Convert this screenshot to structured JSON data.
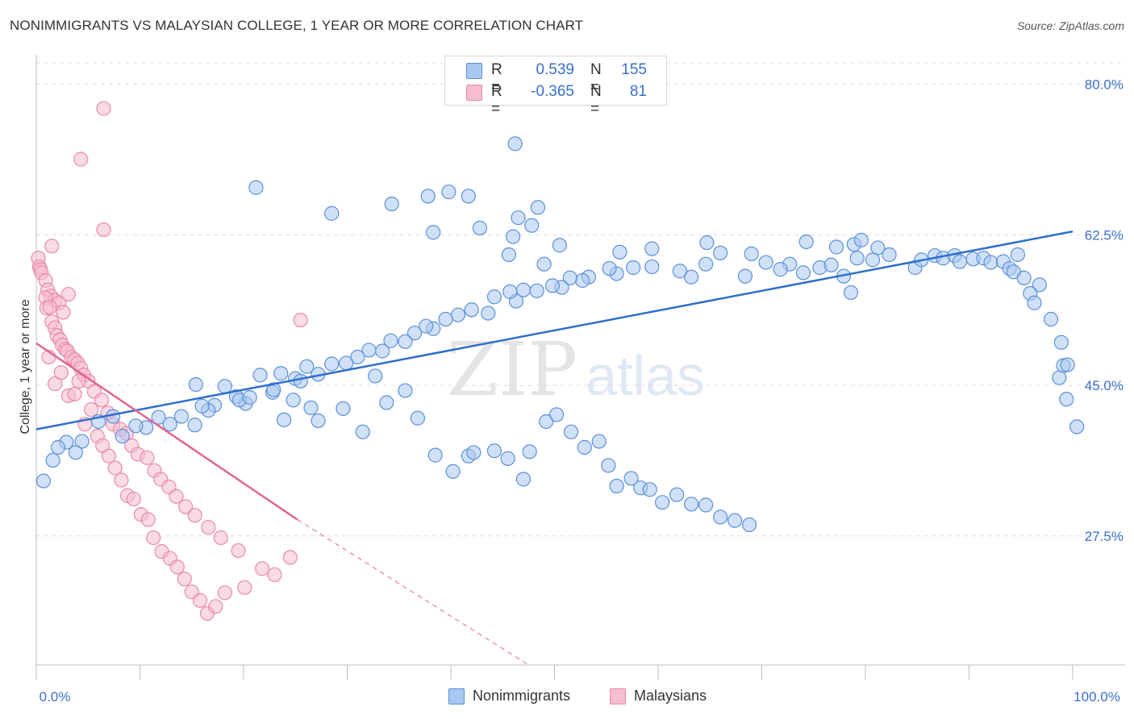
{
  "header": {
    "title": "NONIMMIGRANTS VS MALAYSIAN COLLEGE, 1 YEAR OR MORE CORRELATION CHART",
    "source": "Source: ZipAtlas.com"
  },
  "colors": {
    "blue_fill": "#a9c8f0",
    "blue_stroke": "#5b8fd8",
    "blue_line": "#2d6fcc",
    "pink_fill": "#f6bcd0",
    "pink_stroke": "#e889a8",
    "pink_line": "#e0658f",
    "grid": "#dddddd",
    "axis_text": "#3a6fc9"
  },
  "legend": {
    "rows": [
      {
        "r_label": "R =",
        "r_value": "0.539",
        "n_label": "N =",
        "n_value": "155"
      },
      {
        "r_label": "R =",
        "r_value": "-0.365",
        "n_label": "N =",
        "n_value": "81"
      }
    ],
    "bottom": [
      "Nonimmigrants",
      "Malaysians"
    ]
  },
  "watermark": {
    "zip": "ZIP",
    "atlas": "atlas"
  },
  "chart_data": {
    "type": "scatter",
    "title": "NONIMMIGRANTS VS MALAYSIAN COLLEGE, 1 YEAR OR MORE CORRELATION CHART",
    "xlabel": "",
    "ylabel": "College, 1 year or more",
    "xlim": [
      0,
      100
    ],
    "ylim": [
      12.5,
      82.5
    ],
    "x_tick_labels": [
      "0.0%",
      "100.0%"
    ],
    "y_ticks": [
      27.5,
      45.0,
      62.5,
      80.0
    ],
    "y_tick_labels": [
      "27.5%",
      "45.0%",
      "62.5%",
      "80.0%"
    ],
    "grid": true,
    "legend_position": "top-center",
    "series": [
      {
        "name": "Nonimmigrants",
        "r": 0.539,
        "n": 155,
        "trend": {
          "x": [
            0,
            100
          ],
          "y": [
            39.9,
            62.9
          ]
        },
        "points": [
          [
            46.2,
            73.1
          ],
          [
            21.2,
            68.0
          ],
          [
            37.8,
            67.0
          ],
          [
            34.3,
            66.1
          ],
          [
            39.8,
            67.5
          ],
          [
            41.7,
            67.0
          ],
          [
            46.5,
            64.5
          ],
          [
            48.4,
            65.7
          ],
          [
            42.8,
            63.3
          ],
          [
            47.8,
            63.6
          ],
          [
            28.5,
            65.0
          ],
          [
            38.3,
            62.8
          ],
          [
            46.0,
            62.3
          ],
          [
            45.6,
            60.2
          ],
          [
            50.5,
            61.3
          ],
          [
            49.0,
            59.1
          ],
          [
            59.4,
            60.9
          ],
          [
            56.3,
            60.5
          ],
          [
            74.3,
            61.7
          ],
          [
            78.9,
            61.4
          ],
          [
            77.2,
            61.1
          ],
          [
            79.6,
            61.9
          ],
          [
            81.2,
            61.0
          ],
          [
            79.2,
            59.8
          ],
          [
            80.7,
            59.6
          ],
          [
            82.3,
            60.2
          ],
          [
            84.8,
            58.7
          ],
          [
            85.4,
            59.6
          ],
          [
            86.7,
            60.1
          ],
          [
            87.5,
            59.8
          ],
          [
            88.6,
            60.1
          ],
          [
            89.1,
            59.4
          ],
          [
            90.4,
            59.7
          ],
          [
            91.4,
            59.8
          ],
          [
            92.1,
            59.3
          ],
          [
            93.3,
            59.4
          ],
          [
            93.9,
            58.6
          ],
          [
            94.7,
            60.2
          ],
          [
            94.3,
            58.2
          ],
          [
            95.3,
            57.5
          ],
          [
            96.8,
            56.7
          ],
          [
            95.9,
            55.7
          ],
          [
            96.3,
            54.6
          ],
          [
            97.9,
            52.7
          ],
          [
            98.9,
            50.0
          ],
          [
            99.1,
            47.3
          ],
          [
            99.5,
            47.4
          ],
          [
            98.7,
            45.9
          ],
          [
            99.4,
            43.4
          ],
          [
            100.4,
            40.2
          ],
          [
            72.7,
            59.1
          ],
          [
            74.0,
            58.1
          ],
          [
            75.6,
            58.7
          ],
          [
            76.7,
            59.0
          ],
          [
            77.9,
            57.7
          ],
          [
            78.6,
            55.8
          ],
          [
            71.8,
            58.5
          ],
          [
            70.4,
            59.3
          ],
          [
            69.0,
            60.3
          ],
          [
            68.4,
            57.7
          ],
          [
            66.0,
            60.4
          ],
          [
            64.7,
            61.6
          ],
          [
            64.6,
            59.1
          ],
          [
            63.2,
            57.6
          ],
          [
            62.1,
            58.3
          ],
          [
            59.4,
            58.8
          ],
          [
            57.6,
            58.7
          ],
          [
            56.0,
            58.0
          ],
          [
            55.3,
            58.6
          ],
          [
            53.3,
            57.6
          ],
          [
            52.7,
            57.2
          ],
          [
            51.5,
            57.5
          ],
          [
            50.7,
            56.4
          ],
          [
            49.8,
            56.6
          ],
          [
            48.3,
            56.0
          ],
          [
            47.0,
            56.1
          ],
          [
            46.3,
            54.8
          ],
          [
            45.7,
            55.9
          ],
          [
            44.2,
            55.3
          ],
          [
            43.6,
            53.4
          ],
          [
            42.0,
            53.8
          ],
          [
            40.7,
            53.2
          ],
          [
            39.5,
            52.7
          ],
          [
            38.3,
            51.6
          ],
          [
            37.6,
            51.9
          ],
          [
            36.5,
            51.1
          ],
          [
            35.6,
            50.1
          ],
          [
            34.2,
            50.2
          ],
          [
            33.4,
            49.0
          ],
          [
            32.1,
            49.1
          ],
          [
            31.0,
            48.3
          ],
          [
            29.9,
            47.6
          ],
          [
            28.5,
            47.5
          ],
          [
            27.2,
            46.3
          ],
          [
            26.1,
            47.2
          ],
          [
            25.0,
            45.8
          ],
          [
            23.6,
            46.4
          ],
          [
            22.8,
            44.2
          ],
          [
            21.6,
            46.2
          ],
          [
            20.2,
            42.9
          ],
          [
            19.3,
            43.7
          ],
          [
            18.2,
            44.9
          ],
          [
            17.2,
            42.7
          ],
          [
            16.6,
            42.1
          ],
          [
            16.0,
            42.6
          ],
          [
            15.3,
            40.4
          ],
          [
            14.0,
            41.4
          ],
          [
            12.9,
            40.5
          ],
          [
            11.8,
            41.3
          ],
          [
            10.6,
            40.1
          ],
          [
            9.6,
            40.3
          ],
          [
            8.3,
            39.1
          ],
          [
            7.4,
            41.4
          ],
          [
            6.0,
            40.8
          ],
          [
            4.4,
            38.5
          ],
          [
            3.8,
            37.2
          ],
          [
            2.9,
            38.4
          ],
          [
            2.1,
            37.8
          ],
          [
            1.6,
            36.3
          ],
          [
            0.7,
            33.9
          ],
          [
            15.4,
            45.1
          ],
          [
            19.6,
            43.3
          ],
          [
            20.6,
            43.6
          ],
          [
            22.9,
            44.5
          ],
          [
            23.9,
            41.0
          ],
          [
            24.8,
            43.3
          ],
          [
            25.5,
            45.5
          ],
          [
            26.5,
            42.4
          ],
          [
            27.2,
            40.9
          ],
          [
            29.6,
            42.3
          ],
          [
            31.5,
            39.6
          ],
          [
            32.7,
            46.1
          ],
          [
            33.8,
            43.0
          ],
          [
            35.6,
            44.4
          ],
          [
            36.8,
            41.2
          ],
          [
            38.5,
            36.9
          ],
          [
            40.2,
            35.0
          ],
          [
            41.7,
            36.8
          ],
          [
            42.2,
            37.2
          ],
          [
            44.2,
            37.4
          ],
          [
            45.5,
            36.5
          ],
          [
            47.0,
            34.1
          ],
          [
            47.6,
            37.3
          ],
          [
            49.2,
            40.8
          ],
          [
            50.2,
            41.6
          ],
          [
            51.6,
            39.6
          ],
          [
            52.9,
            37.8
          ],
          [
            54.3,
            38.5
          ],
          [
            55.2,
            35.7
          ],
          [
            56.0,
            33.3
          ],
          [
            57.4,
            34.2
          ],
          [
            58.3,
            33.1
          ],
          [
            59.2,
            32.9
          ],
          [
            60.4,
            31.4
          ],
          [
            61.8,
            32.3
          ],
          [
            63.2,
            31.2
          ],
          [
            64.6,
            31.1
          ],
          [
            66.0,
            29.7
          ],
          [
            67.4,
            29.3
          ],
          [
            68.8,
            28.8
          ]
        ]
      },
      {
        "name": "Malaysians",
        "r": -0.365,
        "n": 81,
        "trend": {
          "x": [
            0,
            25.2
          ],
          "y": [
            49.9,
            29.4
          ]
        },
        "trend_dashed": {
          "x": [
            25.2,
            47.5
          ],
          "y": [
            29.4,
            12.5
          ]
        },
        "points": [
          [
            6.5,
            77.2
          ],
          [
            4.3,
            71.3
          ],
          [
            6.5,
            63.1
          ],
          [
            1.5,
            61.2
          ],
          [
            0.2,
            59.8
          ],
          [
            0.3,
            58.8
          ],
          [
            0.4,
            58.5
          ],
          [
            0.5,
            58.1
          ],
          [
            0.9,
            57.2
          ],
          [
            1.1,
            56.1
          ],
          [
            1.4,
            55.4
          ],
          [
            1.8,
            54.9
          ],
          [
            2.2,
            54.6
          ],
          [
            2.6,
            53.5
          ],
          [
            3.1,
            55.6
          ],
          [
            0.9,
            55.2
          ],
          [
            1.0,
            54.0
          ],
          [
            1.3,
            54.1
          ],
          [
            1.5,
            52.4
          ],
          [
            1.8,
            51.7
          ],
          [
            2.0,
            50.8
          ],
          [
            2.3,
            50.3
          ],
          [
            2.5,
            49.7
          ],
          [
            2.8,
            49.2
          ],
          [
            3.0,
            49.0
          ],
          [
            3.4,
            48.3
          ],
          [
            3.7,
            48.0
          ],
          [
            4.0,
            47.6
          ],
          [
            4.3,
            47.0
          ],
          [
            4.6,
            46.2
          ],
          [
            5.0,
            45.5
          ],
          [
            5.6,
            44.3
          ],
          [
            6.3,
            43.3
          ],
          [
            6.9,
            41.8
          ],
          [
            7.4,
            40.5
          ],
          [
            8.1,
            39.9
          ],
          [
            8.7,
            39.4
          ],
          [
            9.2,
            38.0
          ],
          [
            9.8,
            37.0
          ],
          [
            10.7,
            36.6
          ],
          [
            11.4,
            35.1
          ],
          [
            12.0,
            34.1
          ],
          [
            12.8,
            33.2
          ],
          [
            13.5,
            32.1
          ],
          [
            14.4,
            30.9
          ],
          [
            15.3,
            29.9
          ],
          [
            16.6,
            28.5
          ],
          [
            17.8,
            27.3
          ],
          [
            19.5,
            25.8
          ],
          [
            21.8,
            23.7
          ],
          [
            1.2,
            48.3
          ],
          [
            1.8,
            45.2
          ],
          [
            2.4,
            46.5
          ],
          [
            3.1,
            43.8
          ],
          [
            3.7,
            44.0
          ],
          [
            4.1,
            45.5
          ],
          [
            4.7,
            40.5
          ],
          [
            5.3,
            42.2
          ],
          [
            5.9,
            39.1
          ],
          [
            6.4,
            38.0
          ],
          [
            7.0,
            36.8
          ],
          [
            7.6,
            35.4
          ],
          [
            8.2,
            34.0
          ],
          [
            8.8,
            32.2
          ],
          [
            9.4,
            31.8
          ],
          [
            10.1,
            30.0
          ],
          [
            10.8,
            29.4
          ],
          [
            11.3,
            27.3
          ],
          [
            12.1,
            25.7
          ],
          [
            12.9,
            24.9
          ],
          [
            13.6,
            23.9
          ],
          [
            14.3,
            22.5
          ],
          [
            15.0,
            21.0
          ],
          [
            15.8,
            20.0
          ],
          [
            16.5,
            18.5
          ],
          [
            17.3,
            19.3
          ],
          [
            18.2,
            20.9
          ],
          [
            20.1,
            21.5
          ],
          [
            23.0,
            23.0
          ],
          [
            24.5,
            25.0
          ],
          [
            25.5,
            52.6
          ]
        ]
      }
    ]
  }
}
